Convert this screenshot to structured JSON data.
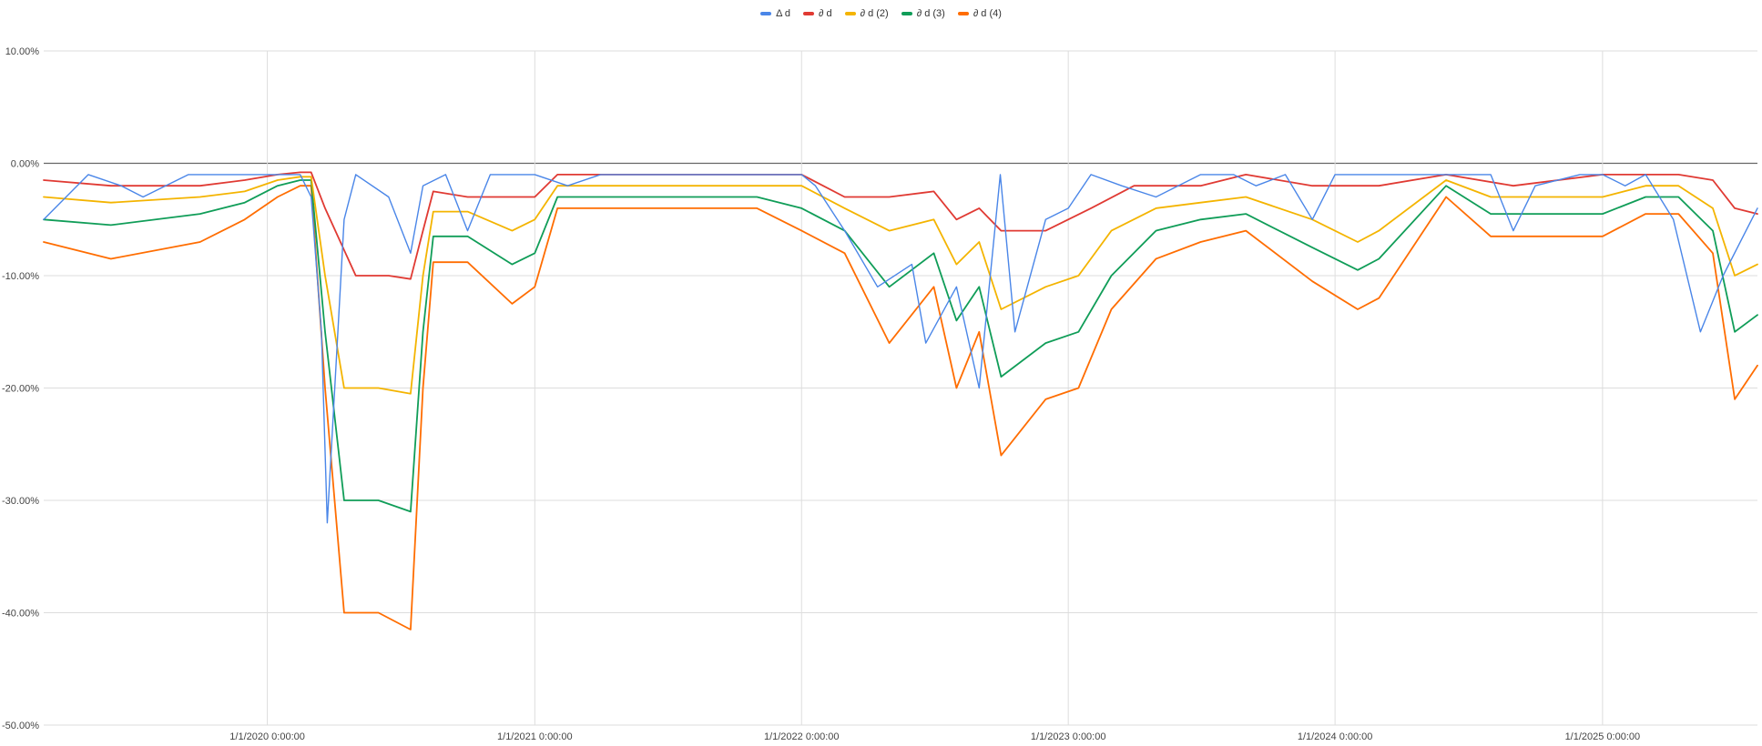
{
  "chart_data": {
    "type": "line",
    "title": "",
    "xlabel": "",
    "ylabel": "",
    "ylim": [
      -50,
      10
    ],
    "xlim": [
      "2019-03-01",
      "2025-08-01"
    ],
    "y_ticks": [
      "10.00%",
      "0.00%",
      "-10.00%",
      "-20.00%",
      "-30.00%",
      "-40.00%",
      "-50.00%"
    ],
    "y_tick_values": [
      10,
      0,
      -10,
      -20,
      -30,
      -40,
      -50
    ],
    "x_ticks": [
      "1/1/2020 0:00:00",
      "1/1/2021 0:00:00",
      "1/1/2022 0:00:00",
      "1/1/2023 0:00:00",
      "1/1/2024 0:00:00",
      "1/1/2025 0:00:00"
    ],
    "x_tick_dates": [
      "2020-01-01",
      "2021-01-01",
      "2022-01-01",
      "2023-01-01",
      "2024-01-01",
      "2025-01-01"
    ],
    "grid": true,
    "legend_position": "top",
    "series": [
      {
        "name": "Δ d",
        "color": "#4a86e8",
        "x": [
          "2019-03-01",
          "2019-05-01",
          "2019-06-15",
          "2019-07-15",
          "2019-09-15",
          "2019-11-01",
          "2019-12-15",
          "2020-02-15",
          "2020-03-01",
          "2020-03-15",
          "2020-03-23",
          "2020-04-15",
          "2020-05-01",
          "2020-06-15",
          "2020-07-15",
          "2020-08-01",
          "2020-09-01",
          "2020-10-01",
          "2020-11-01",
          "2020-12-01",
          "2021-01-01",
          "2021-02-15",
          "2021-04-01",
          "2021-06-01",
          "2021-08-01",
          "2021-10-01",
          "2021-12-01",
          "2022-01-01",
          "2022-01-20",
          "2022-03-01",
          "2022-04-15",
          "2022-06-01",
          "2022-06-20",
          "2022-08-01",
          "2022-09-01",
          "2022-09-30",
          "2022-10-20",
          "2022-12-01",
          "2023-01-01",
          "2023-02-01",
          "2023-03-15",
          "2023-05-01",
          "2023-07-01",
          "2023-08-15",
          "2023-09-15",
          "2023-10-25",
          "2023-12-01",
          "2024-01-01",
          "2024-03-01",
          "2024-04-15",
          "2024-06-01",
          "2024-08-01",
          "2024-09-01",
          "2024-10-01",
          "2024-12-01",
          "2025-01-01",
          "2025-02-01",
          "2025-03-01",
          "2025-04-08",
          "2025-05-15",
          "2025-06-15",
          "2025-08-01"
        ],
        "values": [
          -5,
          -1,
          -2,
          -3,
          -1,
          -1,
          -1,
          -1,
          -3,
          -15,
          -32,
          -5,
          -1,
          -3,
          -8,
          -2,
          -1,
          -6,
          -1,
          -1,
          -1,
          -2,
          -1,
          -1,
          -1,
          -1,
          -1,
          -1,
          -2,
          -6,
          -11,
          -9,
          -16,
          -11,
          -20,
          -1,
          -15,
          -5,
          -4,
          -1,
          -2,
          -3,
          -1,
          -1,
          -2,
          -1,
          -5,
          -1,
          -1,
          -1,
          -1,
          -1,
          -6,
          -2,
          -1,
          -1,
          -2,
          -1,
          -5,
          -15,
          -10,
          -4
        ]
      },
      {
        "name": "∂ d",
        "color": "#e03a33",
        "x": [
          "2019-03-01",
          "2019-06-01",
          "2019-10-01",
          "2019-12-01",
          "2020-01-15",
          "2020-02-15",
          "2020-03-01",
          "2020-03-20",
          "2020-05-01",
          "2020-06-15",
          "2020-07-15",
          "2020-08-01",
          "2020-08-15",
          "2020-10-01",
          "2021-01-01",
          "2021-02-01",
          "2021-05-01",
          "2021-08-01",
          "2021-10-01",
          "2022-01-01",
          "2022-03-01",
          "2022-05-01",
          "2022-07-01",
          "2022-08-01",
          "2022-09-01",
          "2022-10-01",
          "2022-12-01",
          "2023-02-01",
          "2023-04-01",
          "2023-07-01",
          "2023-09-01",
          "2023-12-01",
          "2024-03-01",
          "2024-06-01",
          "2024-09-01",
          "2025-01-01",
          "2025-03-01",
          "2025-04-15",
          "2025-06-01",
          "2025-07-01",
          "2025-08-01"
        ],
        "values": [
          -1.5,
          -2,
          -2,
          -1.5,
          -1,
          -0.8,
          -0.8,
          -4,
          -10,
          -10,
          -10.3,
          -6,
          -2.5,
          -3,
          -3,
          -1,
          -1,
          -1,
          -1,
          -1,
          -3,
          -3,
          -2.5,
          -5,
          -4,
          -6,
          -6,
          -4,
          -2,
          -2,
          -1,
          -2,
          -2,
          -1,
          -2,
          -1,
          -1,
          -1,
          -1.5,
          -4,
          -4.5
        ]
      },
      {
        "name": "∂ d (2)",
        "color": "#f4b400",
        "x": [
          "2019-03-01",
          "2019-06-01",
          "2019-10-01",
          "2019-12-01",
          "2020-01-15",
          "2020-02-15",
          "2020-03-01",
          "2020-03-20",
          "2020-04-15",
          "2020-06-01",
          "2020-07-15",
          "2020-08-01",
          "2020-08-15",
          "2020-10-01",
          "2020-12-01",
          "2021-01-01",
          "2021-02-01",
          "2021-05-01",
          "2021-08-01",
          "2021-11-01",
          "2022-01-01",
          "2022-03-01",
          "2022-05-01",
          "2022-07-01",
          "2022-08-01",
          "2022-09-01",
          "2022-10-01",
          "2022-12-01",
          "2023-01-15",
          "2023-03-01",
          "2023-05-01",
          "2023-07-01",
          "2023-09-01",
          "2023-12-01",
          "2024-02-01",
          "2024-03-01",
          "2024-06-01",
          "2024-08-01",
          "2024-09-01",
          "2025-01-01",
          "2025-03-01",
          "2025-04-15",
          "2025-06-01",
          "2025-07-01",
          "2025-08-01"
        ],
        "values": [
          -3,
          -3.5,
          -3,
          -2.5,
          -1.5,
          -1.2,
          -1.2,
          -10,
          -20,
          -20,
          -20.5,
          -10,
          -4.3,
          -4.3,
          -6,
          -5,
          -2,
          -2,
          -2,
          -2,
          -2,
          -4,
          -6,
          -5,
          -9,
          -7,
          -13,
          -11,
          -10,
          -6,
          -4,
          -3.5,
          -3,
          -5,
          -7,
          -6,
          -1.5,
          -3,
          -3,
          -3,
          -2,
          -2,
          -4,
          -10,
          -9
        ]
      },
      {
        "name": "∂ d (3)",
        "color": "#109d58",
        "x": [
          "2019-03-01",
          "2019-06-01",
          "2019-10-01",
          "2019-12-01",
          "2020-01-15",
          "2020-02-15",
          "2020-03-01",
          "2020-03-20",
          "2020-04-15",
          "2020-06-01",
          "2020-07-15",
          "2020-08-01",
          "2020-08-15",
          "2020-10-01",
          "2020-12-01",
          "2021-01-01",
          "2021-02-01",
          "2021-05-01",
          "2021-08-01",
          "2021-11-01",
          "2022-01-01",
          "2022-03-01",
          "2022-05-01",
          "2022-07-01",
          "2022-08-01",
          "2022-09-01",
          "2022-10-01",
          "2022-12-01",
          "2023-01-15",
          "2023-03-01",
          "2023-05-01",
          "2023-07-01",
          "2023-09-01",
          "2023-12-01",
          "2024-02-01",
          "2024-03-01",
          "2024-06-01",
          "2024-08-01",
          "2024-09-01",
          "2025-01-01",
          "2025-03-01",
          "2025-04-15",
          "2025-06-01",
          "2025-07-01",
          "2025-08-01"
        ],
        "values": [
          -5,
          -5.5,
          -4.5,
          -3.5,
          -2,
          -1.5,
          -1.5,
          -15,
          -30,
          -30,
          -31,
          -15,
          -6.5,
          -6.5,
          -9,
          -8,
          -3,
          -3,
          -3,
          -3,
          -4,
          -6,
          -11,
          -8,
          -14,
          -11,
          -19,
          -16,
          -15,
          -10,
          -6,
          -5,
          -4.5,
          -7.5,
          -9.5,
          -8.5,
          -2,
          -4.5,
          -4.5,
          -4.5,
          -3,
          -3,
          -6,
          -15,
          -13.5
        ]
      },
      {
        "name": "∂ d (4)",
        "color": "#ff6d01",
        "x": [
          "2019-03-01",
          "2019-06-01",
          "2019-10-01",
          "2019-12-01",
          "2020-01-15",
          "2020-02-15",
          "2020-03-01",
          "2020-03-20",
          "2020-04-15",
          "2020-06-01",
          "2020-07-15",
          "2020-08-01",
          "2020-08-15",
          "2020-10-01",
          "2020-12-01",
          "2021-01-01",
          "2021-02-01",
          "2021-05-01",
          "2021-08-01",
          "2021-11-01",
          "2022-01-01",
          "2022-03-01",
          "2022-05-01",
          "2022-07-01",
          "2022-08-01",
          "2022-09-01",
          "2022-10-01",
          "2022-12-01",
          "2023-01-15",
          "2023-03-01",
          "2023-05-01",
          "2023-07-01",
          "2023-09-01",
          "2023-12-01",
          "2024-02-01",
          "2024-03-01",
          "2024-06-01",
          "2024-08-01",
          "2024-09-01",
          "2025-01-01",
          "2025-03-01",
          "2025-04-15",
          "2025-06-01",
          "2025-07-01",
          "2025-08-01"
        ],
        "values": [
          -7,
          -8.5,
          -7,
          -5,
          -3,
          -2,
          -2,
          -20,
          -40,
          -40,
          -41.5,
          -20,
          -8.8,
          -8.8,
          -12.5,
          -11,
          -4,
          -4,
          -4,
          -4,
          -6,
          -8,
          -16,
          -11,
          -20,
          -15,
          -26,
          -21,
          -20,
          -13,
          -8.5,
          -7,
          -6,
          -10.5,
          -13,
          -12,
          -3,
          -6.5,
          -6.5,
          -6.5,
          -4.5,
          -4.5,
          -8,
          -21,
          -18
        ]
      }
    ]
  }
}
